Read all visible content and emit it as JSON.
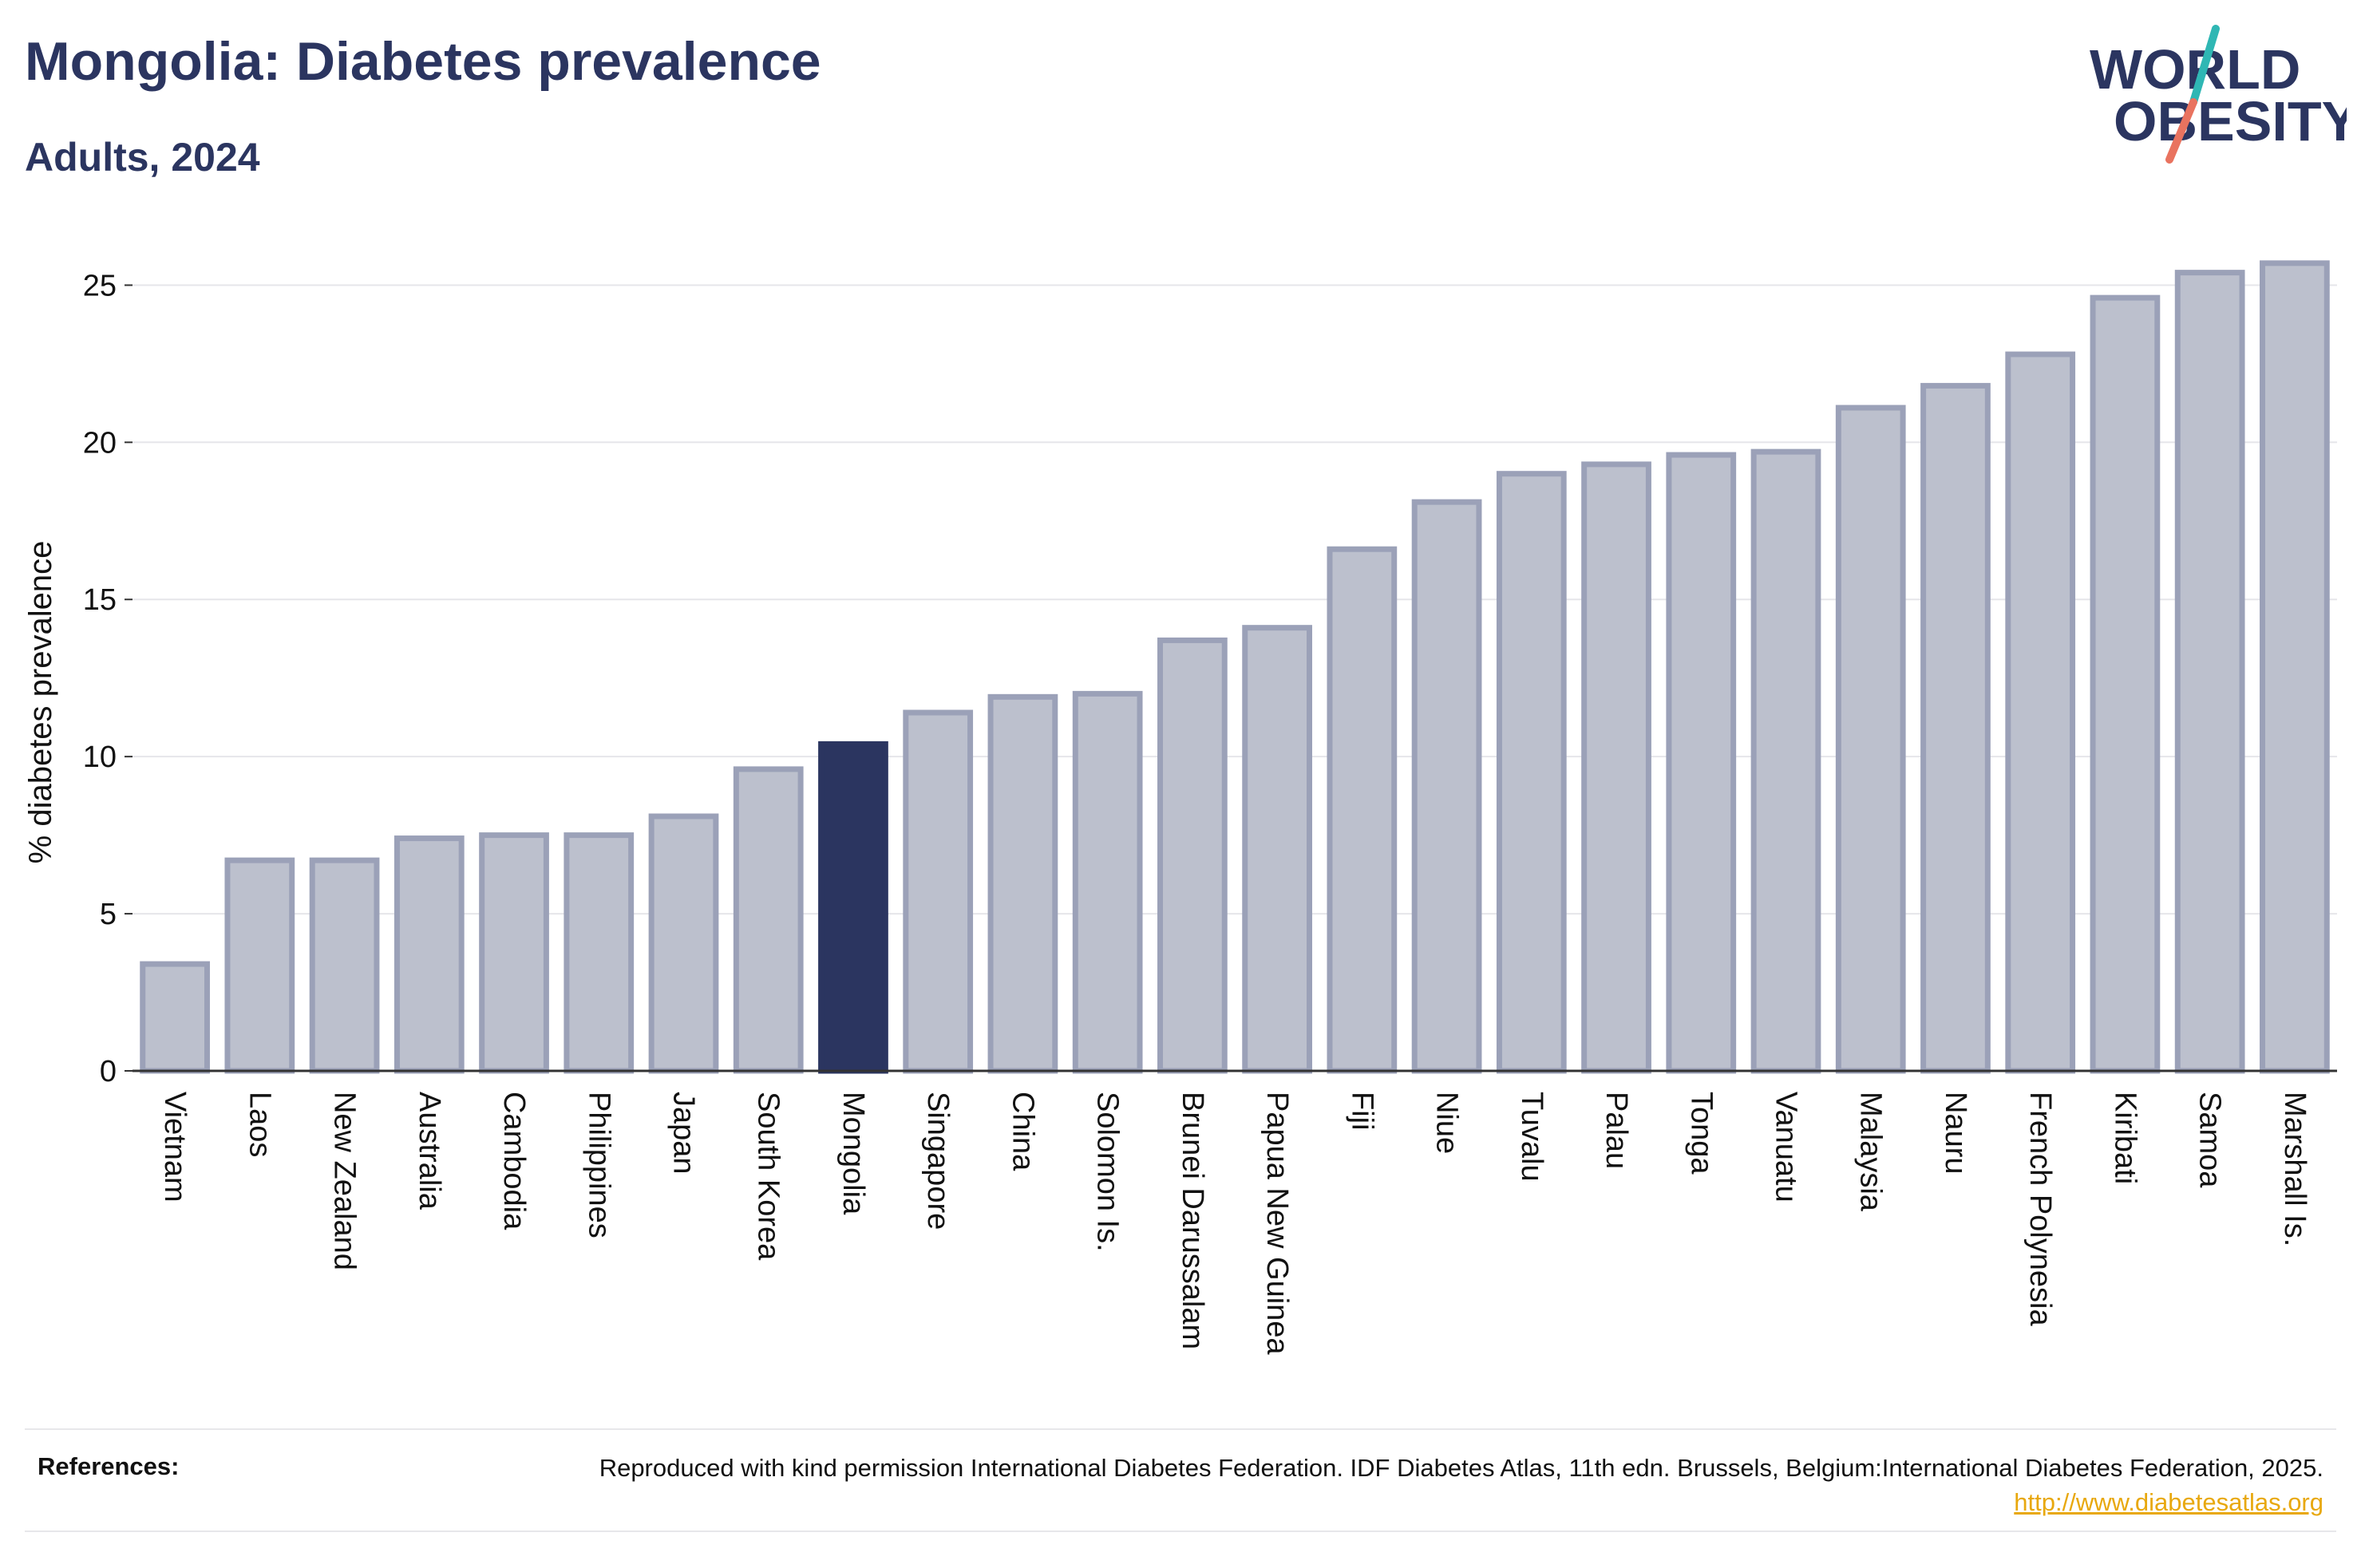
{
  "header": {
    "title": "Mongolia: Diabetes prevalence",
    "subtitle": "Adults, 2024"
  },
  "logo": {
    "line1": "WORLD",
    "line2": "OBESITY",
    "brand_color": "#2b3560",
    "accent_teal": "#2fb7b4",
    "accent_coral": "#e9735f"
  },
  "chart_data": {
    "type": "bar",
    "title": "Mongolia: Diabetes prevalence",
    "subtitle": "Adults, 2024",
    "xlabel": "",
    "ylabel": "% diabetes prevalence",
    "ylim": [
      0,
      26
    ],
    "yticks": [
      0,
      5,
      10,
      15,
      20,
      25
    ],
    "grid": true,
    "highlight": "Mongolia",
    "colors": {
      "bar": "#bcc0cd",
      "bar_edge": "#9ba1b8",
      "highlight": "#2b3560"
    },
    "categories": [
      "Vietnam",
      "Laos",
      "New Zealand",
      "Australia",
      "Cambodia",
      "Philippines",
      "Japan",
      "South Korea",
      "Mongolia",
      "Singapore",
      "China",
      "Solomon Is.",
      "Brunei Darussalam",
      "Papua New Guinea",
      "Fiji",
      "Niue",
      "Tuvalu",
      "Palau",
      "Tonga",
      "Vanuatu",
      "Malaysia",
      "Nauru",
      "French Polynesia",
      "Kiribati",
      "Samoa",
      "Marshall Is."
    ],
    "values": [
      3.4,
      6.7,
      6.7,
      7.4,
      7.5,
      7.5,
      8.1,
      9.6,
      10.4,
      11.4,
      11.9,
      12.0,
      13.7,
      14.1,
      16.6,
      18.1,
      19.0,
      19.3,
      19.6,
      19.7,
      21.1,
      21.8,
      22.8,
      24.6,
      25.4,
      25.7
    ]
  },
  "references": {
    "label": "References:",
    "text": "Reproduced with kind permission International Diabetes Federation. IDF Diabetes Atlas, 11th edn. Brussels, Belgium:International Diabetes Federation, 2025.",
    "link": "http://www.diabetesatlas.org"
  }
}
